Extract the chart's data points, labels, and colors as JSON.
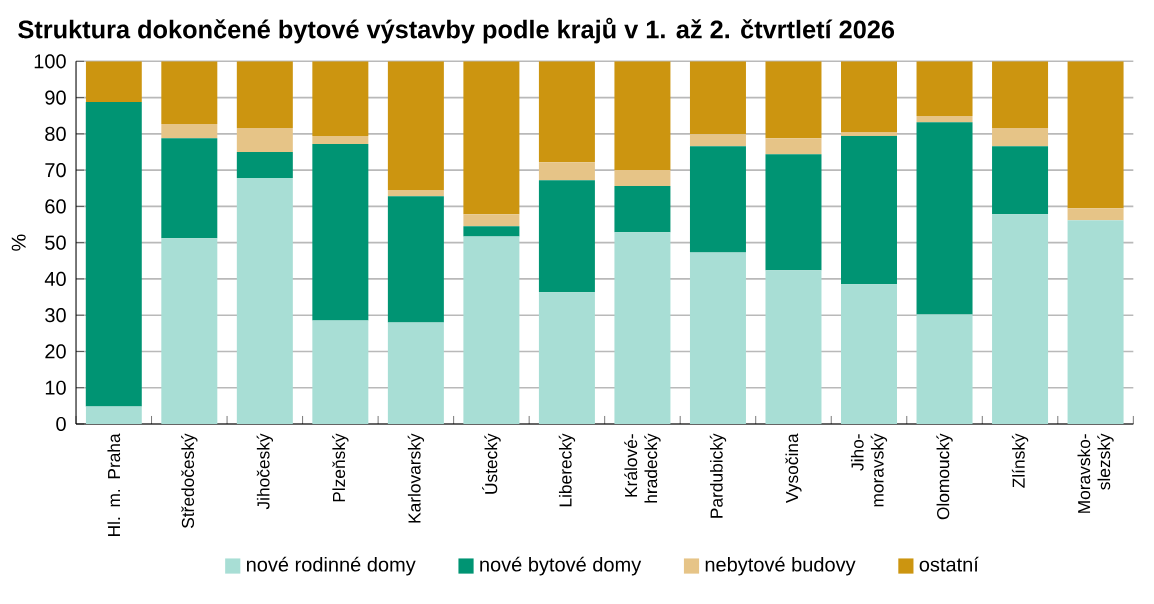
{
  "chart_data": {
    "type": "bar",
    "stacked": true,
    "title": "Struktura dokončené bytové výstavby podle krajů v 1. až 2. čtvrtletí 2026",
    "ylabel": "%",
    "categories": [
      "Hl. m. Praha",
      "Středočeský",
      "Jihočeský",
      "Plzeňský",
      "Karlovarský",
      "Ústecký",
      "Liberecký",
      "Králové-hradecký",
      "Pardubický",
      "Vysočina",
      "Jiho-moravský",
      "Olomoucký",
      "Zlínský",
      "Moravsko-slezský"
    ],
    "series": [
      {
        "name": "nové rodinné domy",
        "color": "#a8ded5",
        "values": [
          4.8,
          51.2,
          67.8,
          28.5,
          28.0,
          51.7,
          36.3,
          52.9,
          47.3,
          42.4,
          38.5,
          30.2,
          57.8,
          56.2
        ]
      },
      {
        "name": "nové bytové domy",
        "color": "#009473",
        "values": [
          84.0,
          27.6,
          7.2,
          48.7,
          34.8,
          2.8,
          30.9,
          12.7,
          29.3,
          32.0,
          40.9,
          53.0,
          18.8,
          0
        ]
      },
      {
        "name": "nebytové budovy",
        "color": "#e6c487",
        "values": [
          0,
          3.9,
          6.6,
          2.2,
          1.7,
          3.3,
          5.0,
          4.4,
          3.3,
          4.4,
          1.1,
          1.7,
          5.0,
          3.3
        ]
      },
      {
        "name": "ostatní",
        "color": "#cc9510",
        "values": [
          11.2,
          17.3,
          18.4,
          20.6,
          35.5,
          42.2,
          27.8,
          30.0,
          20.1,
          21.2,
          19.5,
          15.1,
          18.4,
          40.5
        ]
      }
    ],
    "ylim": [
      0,
      100
    ],
    "yticks": [
      0,
      10,
      20,
      30,
      40,
      50,
      60,
      70,
      80,
      90,
      100
    ],
    "grid": "y",
    "legend": "bottom"
  }
}
